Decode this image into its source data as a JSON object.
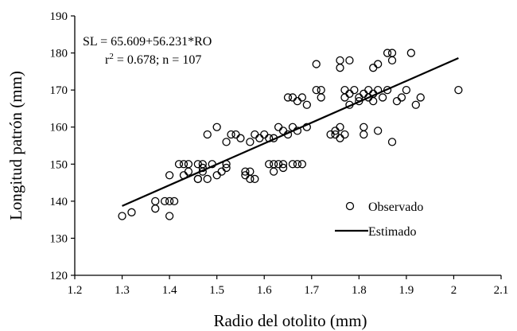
{
  "chart_data": {
    "type": "scatter",
    "xlabel": "Radio del otolito (mm)",
    "ylabel": "Longitud patrón (mm)",
    "xlim": [
      1.2,
      2.1
    ],
    "ylim": [
      120,
      190
    ],
    "x_ticks": [
      1.2,
      1.3,
      1.4,
      1.5,
      1.6,
      1.7,
      1.8,
      1.9,
      2.0,
      2.1
    ],
    "x_tick_labels": [
      "1.2",
      "1.3",
      "1.4",
      "1.5",
      "1.6",
      "1.7",
      "1.8",
      "1.9",
      "2",
      "2.1"
    ],
    "y_ticks": [
      120,
      130,
      140,
      150,
      160,
      170,
      180,
      190
    ],
    "y_tick_labels": [
      "120",
      "130",
      "140",
      "150",
      "160",
      "170",
      "180",
      "190"
    ],
    "grid": false,
    "legend_position": "bottom-right",
    "annotations": [
      "SL = 65.609+56.231*RO",
      "r",
      "2",
      " = 0.678; n = 107"
    ],
    "series": [
      {
        "name": "Observado",
        "marker": "open-circle",
        "points": [
          [
            1.3,
            136
          ],
          [
            1.32,
            137
          ],
          [
            1.37,
            138
          ],
          [
            1.37,
            140
          ],
          [
            1.39,
            140
          ],
          [
            1.4,
            147
          ],
          [
            1.4,
            140
          ],
          [
            1.41,
            140
          ],
          [
            1.4,
            136
          ],
          [
            1.42,
            150
          ],
          [
            1.43,
            147
          ],
          [
            1.44,
            148
          ],
          [
            1.44,
            150
          ],
          [
            1.46,
            150
          ],
          [
            1.46,
            146
          ],
          [
            1.47,
            149
          ],
          [
            1.47,
            148
          ],
          [
            1.47,
            150
          ],
          [
            1.48,
            158
          ],
          [
            1.48,
            146
          ],
          [
            1.49,
            150
          ],
          [
            1.5,
            160
          ],
          [
            1.5,
            147
          ],
          [
            1.51,
            148
          ],
          [
            1.52,
            149
          ],
          [
            1.52,
            156
          ],
          [
            1.52,
            150
          ],
          [
            1.53,
            158
          ],
          [
            1.54,
            158
          ],
          [
            1.55,
            157
          ],
          [
            1.56,
            148
          ],
          [
            1.56,
            147
          ],
          [
            1.57,
            146
          ],
          [
            1.57,
            156
          ],
          [
            1.58,
            158
          ],
          [
            1.58,
            146
          ],
          [
            1.59,
            157
          ],
          [
            1.6,
            158
          ],
          [
            1.61,
            157
          ],
          [
            1.61,
            150
          ],
          [
            1.62,
            148
          ],
          [
            1.62,
            150
          ],
          [
            1.62,
            157
          ],
          [
            1.63,
            160
          ],
          [
            1.64,
            150
          ],
          [
            1.64,
            159
          ],
          [
            1.64,
            149
          ],
          [
            1.65,
            168
          ],
          [
            1.65,
            158
          ],
          [
            1.66,
            160
          ],
          [
            1.66,
            150
          ],
          [
            1.66,
            168
          ],
          [
            1.67,
            150
          ],
          [
            1.67,
            159
          ],
          [
            1.67,
            167
          ],
          [
            1.68,
            150
          ],
          [
            1.68,
            168
          ],
          [
            1.69,
            160
          ],
          [
            1.69,
            166
          ],
          [
            1.71,
            177
          ],
          [
            1.71,
            170
          ],
          [
            1.72,
            170
          ],
          [
            1.72,
            168
          ],
          [
            1.74,
            158
          ],
          [
            1.75,
            158
          ],
          [
            1.75,
            159
          ],
          [
            1.76,
            157
          ],
          [
            1.76,
            160
          ],
          [
            1.76,
            178
          ],
          [
            1.76,
            176
          ],
          [
            1.77,
            170
          ],
          [
            1.77,
            168
          ],
          [
            1.77,
            158
          ],
          [
            1.78,
            166
          ],
          [
            1.78,
            178
          ],
          [
            1.79,
            170
          ],
          [
            1.8,
            168
          ],
          [
            1.8,
            167
          ],
          [
            1.81,
            169
          ],
          [
            1.81,
            160
          ],
          [
            1.81,
            158
          ],
          [
            1.82,
            168
          ],
          [
            1.82,
            170
          ],
          [
            1.83,
            167
          ],
          [
            1.83,
            169
          ],
          [
            1.83,
            176
          ],
          [
            1.84,
            159
          ],
          [
            1.84,
            170
          ],
          [
            1.84,
            177
          ],
          [
            1.85,
            168
          ],
          [
            1.86,
            170
          ],
          [
            1.86,
            180
          ],
          [
            1.87,
            156
          ],
          [
            1.87,
            178
          ],
          [
            1.87,
            180
          ],
          [
            1.88,
            167
          ],
          [
            1.89,
            168
          ],
          [
            1.9,
            170
          ],
          [
            1.91,
            180
          ],
          [
            1.92,
            166
          ],
          [
            1.93,
            168
          ],
          [
            1.78,
            169
          ],
          [
            1.63,
            150
          ],
          [
            1.57,
            148
          ],
          [
            1.46,
            146
          ],
          [
            1.43,
            150
          ],
          [
            2.01,
            170
          ]
        ]
      },
      {
        "name": "Estimado",
        "type": "line",
        "points": [
          [
            1.3,
            138.71
          ],
          [
            2.01,
            178.63
          ]
        ]
      }
    ]
  }
}
